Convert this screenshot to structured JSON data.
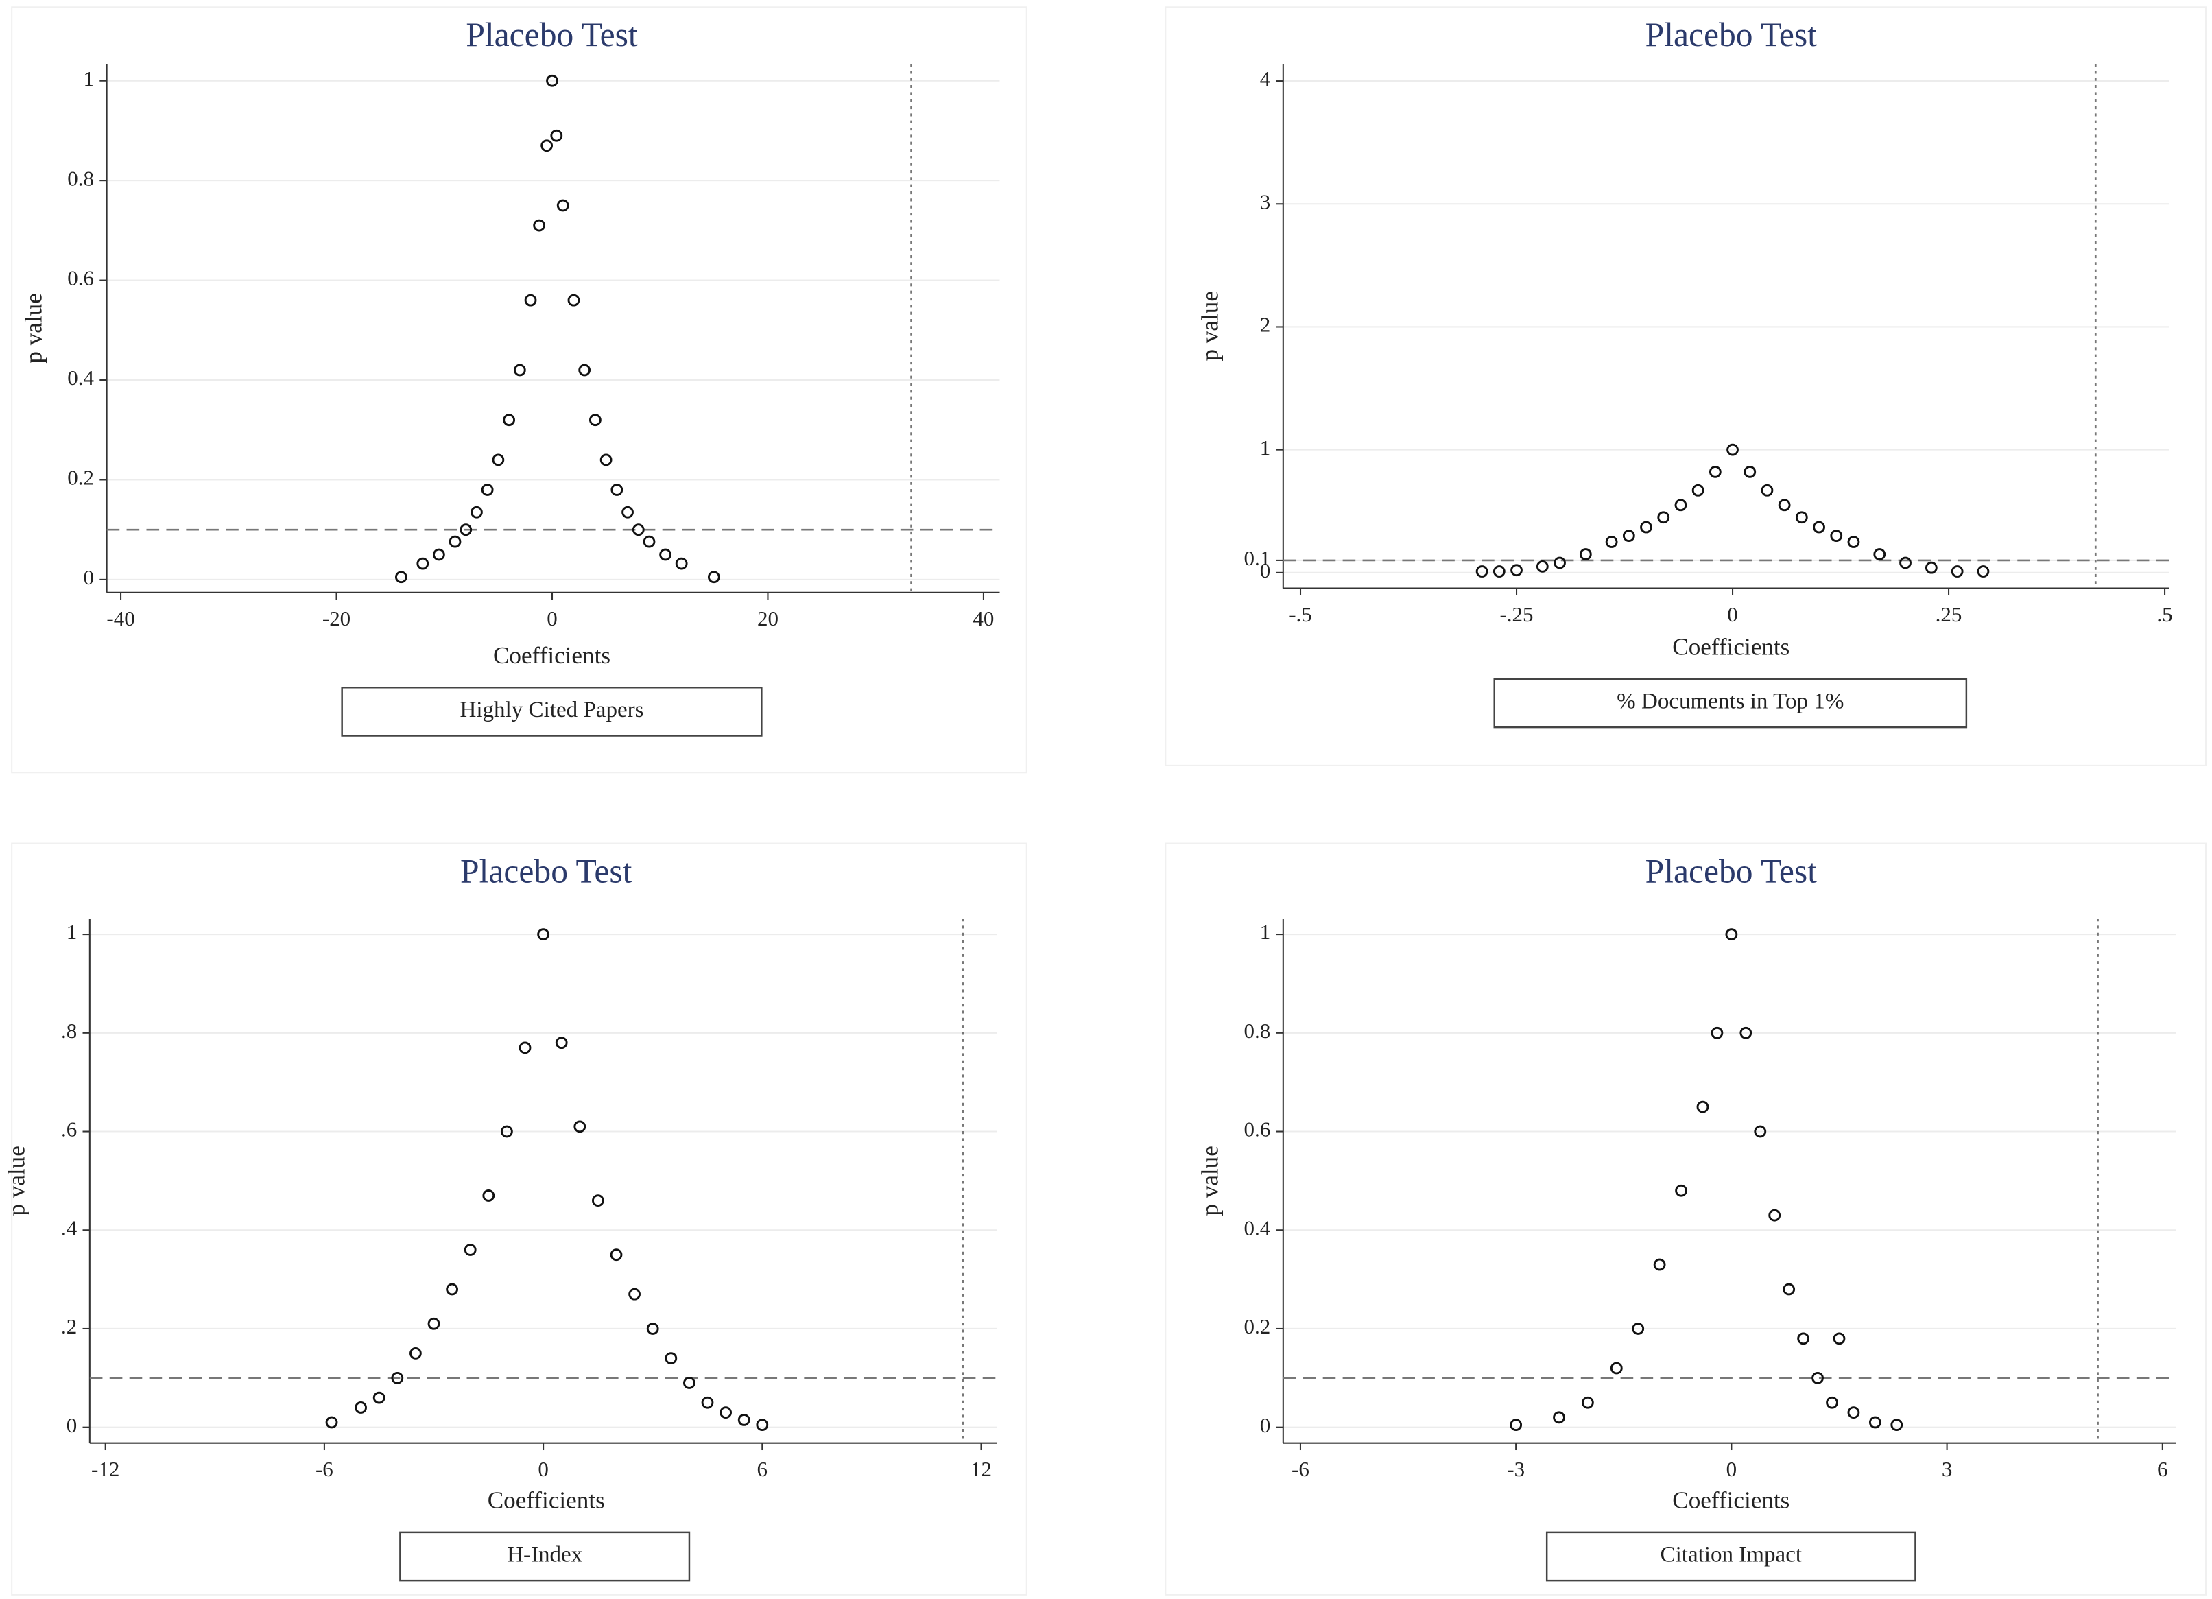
{
  "chart_data": [
    {
      "type": "scatter",
      "title": "Placebo Test",
      "x_label": "Coefficients",
      "y_label": "p value",
      "caption": "Highly Cited Papers",
      "xlim": [
        -41.3,
        41.5
      ],
      "ylim": [
        -0.026,
        1.034
      ],
      "xticks": [
        -40,
        -20,
        0,
        20,
        40
      ],
      "yticks": [
        0,
        0.2,
        0.4,
        0.6,
        0.8,
        1
      ],
      "x_reference_line": 33.3,
      "y_reference_line": 0.1,
      "grid": true,
      "color": "#111111",
      "x": [
        -14,
        -12,
        -10.5,
        -9,
        -8,
        -7,
        -6,
        -5,
        -4,
        -3,
        -2,
        -1.2,
        -0.5,
        0,
        0.4,
        1,
        2,
        3,
        4,
        5,
        6,
        7,
        8,
        9,
        10.5,
        12,
        15
      ],
      "values": [
        0.005,
        0.032,
        0.05,
        0.076,
        0.1,
        0.135,
        0.18,
        0.24,
        0.32,
        0.42,
        0.56,
        0.71,
        0.87,
        1,
        0.89,
        0.75,
        0.56,
        0.42,
        0.32,
        0.24,
        0.18,
        0.135,
        0.1,
        0.076,
        0.05,
        0.032,
        0.005
      ]
    },
    {
      "type": "scatter",
      "title": "Placebo Test",
      "x_label": "Coefficients",
      "y_label": "p value",
      "caption": "% Documents in Top 1%",
      "xlim": [
        -0.52,
        0.505
      ],
      "ylim": [
        -0.127,
        4.14
      ],
      "xticks": [
        {
          "value": -0.5,
          "label": "-.5"
        },
        {
          "value": -0.25,
          "label": "-.25"
        },
        0,
        {
          "value": 0.25,
          "label": ".25"
        },
        {
          "value": 0.5,
          "label": ".5"
        }
      ],
      "yticks": [
        0,
        0.1,
        1,
        2,
        3,
        4
      ],
      "x_reference_line": 0.42,
      "y_reference_line": 0.1,
      "grid": true,
      "color": "#111111",
      "x": [
        -0.29,
        -0.27,
        -0.25,
        -0.22,
        -0.2,
        -0.17,
        -0.14,
        -0.12,
        -0.1,
        -0.08,
        -0.06,
        -0.04,
        -0.02,
        0,
        0.02,
        0.04,
        0.06,
        0.08,
        0.1,
        0.12,
        0.14,
        0.17,
        0.2,
        0.23,
        0.26,
        0.29
      ],
      "values": [
        0.01,
        0.01,
        0.02,
        0.05,
        0.08,
        0.15,
        0.25,
        0.3,
        0.37,
        0.45,
        0.55,
        0.67,
        0.82,
        1,
        0.82,
        0.67,
        0.55,
        0.45,
        0.37,
        0.3,
        0.25,
        0.15,
        0.08,
        0.04,
        0.01,
        0.01
      ]
    },
    {
      "type": "scatter",
      "title": "Placebo Test",
      "x_label": "Coefficients",
      "y_label": "p value",
      "caption": "H-Index",
      "xlim": [
        -12.43,
        12.43
      ],
      "ylim": [
        -0.032,
        1.032
      ],
      "xticks": [
        -12,
        -6,
        0,
        6,
        12
      ],
      "yticks": [
        0,
        {
          "value": 0.2,
          "label": ".2"
        },
        {
          "value": 0.4,
          "label": ".4"
        },
        {
          "value": 0.6,
          "label": ".6"
        },
        {
          "value": 0.8,
          "label": ".8"
        },
        1
      ],
      "x_reference_line": 11.5,
      "y_reference_line": 0.1,
      "grid": true,
      "color": "#111111",
      "x": [
        -5.8,
        -5,
        -4.5,
        -4,
        -3.5,
        -3,
        -2.5,
        -2,
        -1.5,
        -1,
        -0.5,
        0,
        0.5,
        1,
        1.5,
        2,
        2.5,
        3,
        3.5,
        4,
        4.5,
        5,
        5.5,
        6
      ],
      "values": [
        0.01,
        0.04,
        0.06,
        0.1,
        0.15,
        0.21,
        0.28,
        0.36,
        0.47,
        0.6,
        0.77,
        1,
        0.78,
        0.61,
        0.46,
        0.35,
        0.27,
        0.2,
        0.14,
        0.09,
        0.05,
        0.03,
        0.015,
        0.005
      ]
    },
    {
      "type": "scatter",
      "title": "Placebo Test",
      "x_label": "Coefficients",
      "y_label": "p value",
      "caption": "Citation Impact",
      "xlim": [
        -6.24,
        6.19
      ],
      "ylim": [
        -0.032,
        1.032
      ],
      "xticks": [
        -6,
        -3,
        0,
        3,
        6
      ],
      "yticks": [
        0,
        0.2,
        0.4,
        0.6,
        0.8,
        1
      ],
      "x_reference_line": 5.1,
      "y_reference_line": 0.1,
      "grid": true,
      "color": "#111111",
      "x": [
        -3,
        -2.4,
        -2,
        -1.6,
        -1.3,
        -1,
        -0.7,
        -0.4,
        -0.2,
        0,
        0.2,
        0.4,
        0.6,
        0.8,
        1,
        1.2,
        1.5,
        1.4,
        1.7,
        2,
        2.3
      ],
      "values": [
        0.005,
        0.02,
        0.05,
        0.12,
        0.2,
        0.33,
        0.48,
        0.65,
        0.8,
        1,
        0.8,
        0.6,
        0.43,
        0.28,
        0.18,
        0.1,
        0.18,
        0.05,
        0.03,
        0.01,
        0.005
      ]
    }
  ]
}
